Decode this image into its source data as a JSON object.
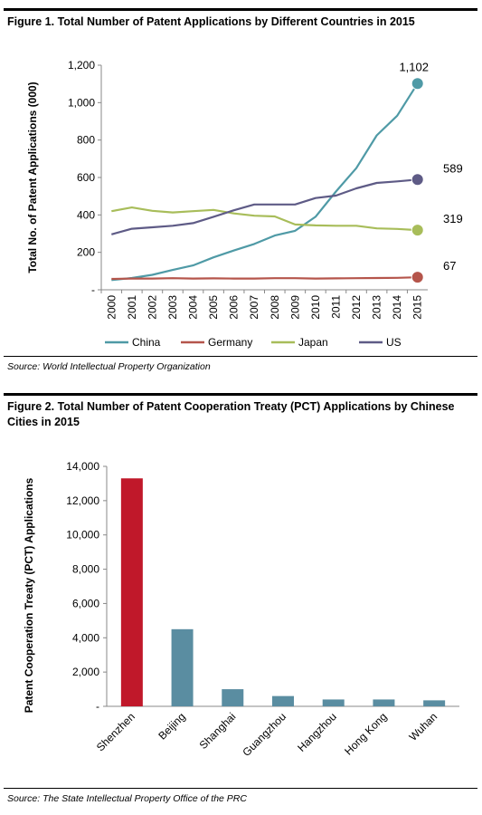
{
  "figure1": {
    "title": "Figure 1. Total Number of Patent Applications by Different Countries in 2015",
    "source": "Source: World Intellectual Property Organization"
  },
  "figure2": {
    "title": "Figure 2. Total Number of Patent Cooperation Treaty (PCT) Applications by Chinese Cities in 2015",
    "source": "Source: The State Intellectual Property Office of the PRC"
  },
  "chart_data": [
    {
      "type": "line",
      "title": "Figure 1. Total Number of Patent Applications by Different Countries in 2015",
      "xlabel": "",
      "ylabel": "Total No. of Patent Applications (000)",
      "ylim": [
        0,
        1200
      ],
      "yticks": [
        0,
        200,
        400,
        600,
        800,
        1000,
        1200
      ],
      "ytick_labels": [
        "-",
        "200",
        "400",
        "600",
        "800",
        "1,000",
        "1,200"
      ],
      "x": [
        "2000",
        "2001",
        "2002",
        "2003",
        "2004",
        "2005",
        "2006",
        "2007",
        "2008",
        "2009",
        "2010",
        "2011",
        "2012",
        "2013",
        "2014",
        "2015"
      ],
      "grid": false,
      "legend": "bottom",
      "series": [
        {
          "name": "China",
          "color": "#4f9aa6",
          "values": [
            52,
            63,
            80,
            106,
            130,
            173,
            210,
            245,
            290,
            315,
            390,
            525,
            650,
            825,
            930,
            1102
          ],
          "end_label": "1,102"
        },
        {
          "name": "Germany",
          "color": "#b5554b",
          "values": [
            58,
            60,
            60,
            62,
            60,
            61,
            60,
            60,
            62,
            62,
            60,
            61,
            62,
            63,
            64,
            67
          ],
          "end_label": "67"
        },
        {
          "name": "Japan",
          "color": "#a8bd5a",
          "values": [
            420,
            440,
            422,
            413,
            420,
            427,
            408,
            396,
            392,
            349,
            344,
            342,
            342,
            328,
            325,
            319
          ],
          "end_label": "319"
        },
        {
          "name": "US",
          "color": "#5e5b86",
          "values": [
            296,
            326,
            334,
            342,
            356,
            390,
            425,
            456,
            456,
            456,
            490,
            503,
            542,
            571,
            579,
            589
          ],
          "end_label": "589"
        }
      ]
    },
    {
      "type": "bar",
      "title": "Figure 2. Total Number of Patent Cooperation Treaty (PCT) Applications by Chinese Cities in 2015",
      "xlabel": "",
      "ylabel": "Patent Cooperation Treaty (PCT) Applications",
      "ylim": [
        0,
        14000
      ],
      "yticks": [
        0,
        2000,
        4000,
        6000,
        8000,
        10000,
        12000,
        14000
      ],
      "ytick_labels": [
        "-",
        "2,000",
        "4,000",
        "6,000",
        "8,000",
        "10,000",
        "12,000",
        "14,000"
      ],
      "categories": [
        "Shenzhen",
        "Beijing",
        "Shanghai",
        "Guangzhou",
        "Hangzhou",
        "Hong Kong",
        "Wuhan"
      ],
      "values": [
        13300,
        4500,
        1000,
        600,
        400,
        400,
        350
      ],
      "colors": [
        "#c0182a",
        "#5a8da1",
        "#5a8da1",
        "#5a8da1",
        "#5a8da1",
        "#5a8da1",
        "#5a8da1"
      ],
      "grid": false
    }
  ]
}
